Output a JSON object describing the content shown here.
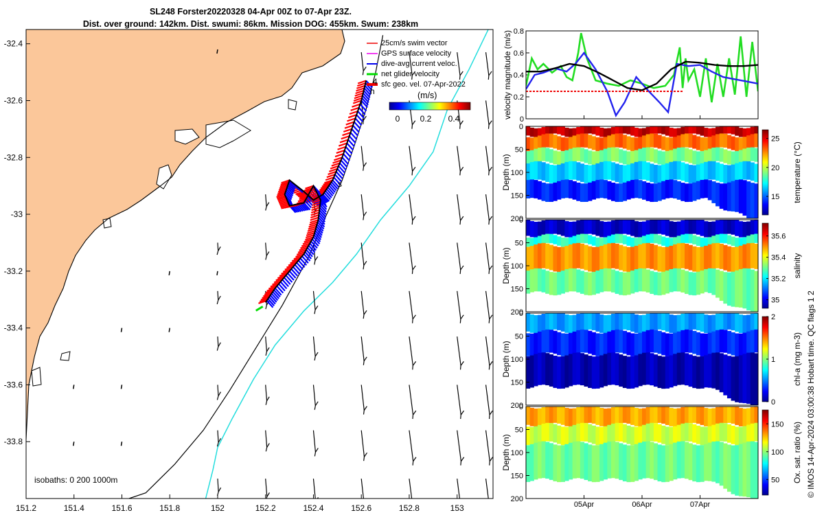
{
  "title_line1": "SL248 Forster20220328 04-Apr 00Z to 07-Apr 23Z.",
  "title_line2": "Dist. over ground: 142km. Dist. swumi: 86km. Mission DOG: 455km. Swum: 238km",
  "side_credit": "© IMOS 14-Apr-2024 03:00:38 Hobart time. QC flags 1  2",
  "colors": {
    "land": "#fbc79a",
    "swim_vector": "#ff0000",
    "gps_velocity": "#ff00ff",
    "dive_current": "#0000ff",
    "net_velocity": "#00dd00",
    "isobath_200": "#000000",
    "isobath_1000": "#22dddd"
  },
  "chart_data": [
    {
      "type": "scatter",
      "name": "map",
      "xlim": [
        151.2,
        153.15
      ],
      "ylim": [
        -34.0,
        -32.35
      ],
      "x_ticks": [
        151.2,
        151.4,
        151.6,
        151.8,
        152,
        152.2,
        152.4,
        152.6,
        152.8,
        153
      ],
      "x_tick_labels": [
        "151.2",
        "151.4",
        "151.6",
        "151.8",
        "152",
        "152.2",
        "152.4",
        "152.6",
        "152.8",
        "153"
      ],
      "y_ticks": [
        -32.4,
        -32.6,
        -32.8,
        -33,
        -33.2,
        -33.4,
        -33.6,
        -33.8
      ],
      "y_tick_labels": [
        "-32.4",
        "-32.6",
        "-32.8",
        "-33",
        "-33.2",
        "-33.4",
        "-33.6",
        "-33.8"
      ],
      "legend": [
        "25cm/s swim vector",
        "GPS surface velocity",
        "dive-avg current veloc.",
        "net glider velocity",
        "sfc geo. vel. 07-Apr-2022"
      ],
      "legend_placement": "top-right",
      "colorbar": {
        "label": "(m/s)",
        "ticks": [
          0,
          0.2,
          0.4
        ],
        "tick_labels": [
          "0",
          "0.2",
          "0.4"
        ]
      },
      "isobaths_label": "isobaths: 0   200  1000m",
      "track_markers": {
        "start": "h",
        "mid": "s",
        "end": "4"
      },
      "glider_track": {
        "lon": [
          152.62,
          152.6,
          152.56,
          152.52,
          152.48,
          152.44,
          152.4,
          152.36,
          152.3,
          152.28,
          152.3,
          152.36,
          152.4,
          152.43,
          152.42,
          152.4,
          152.36,
          152.3,
          152.24,
          152.2
        ],
        "lat": [
          -32.53,
          -32.6,
          -32.7,
          -32.8,
          -32.88,
          -32.93,
          -32.95,
          -32.92,
          -32.88,
          -32.93,
          -32.97,
          -32.96,
          -32.9,
          -32.95,
          -33.02,
          -33.08,
          -33.14,
          -33.2,
          -33.26,
          -33.31
        ]
      },
      "isobath_200": {
        "lon": [
          152.69,
          152.66,
          152.62,
          152.57,
          152.52,
          152.45,
          152.38,
          152.27,
          152.16,
          152.05,
          151.94,
          151.82,
          151.7,
          151.63
        ],
        "lat": [
          -32.37,
          -32.5,
          -32.63,
          -32.76,
          -32.88,
          -33.01,
          -33.15,
          -33.32,
          -33.47,
          -33.62,
          -33.76,
          -33.88,
          -33.98,
          -34.0
        ]
      },
      "isobath_1000": {
        "lon": [
          153.13,
          153.05,
          152.96,
          152.9,
          152.8,
          152.68,
          152.58,
          152.48,
          152.36,
          152.24,
          152.15,
          152.06,
          152.0,
          151.98,
          151.95
        ],
        "lat": [
          -32.35,
          -32.49,
          -32.63,
          -32.78,
          -32.9,
          -33.02,
          -33.14,
          -33.24,
          -33.34,
          -33.46,
          -33.58,
          -33.72,
          -33.82,
          -33.9,
          -34.0
        ]
      }
    },
    {
      "type": "line",
      "name": "velocity",
      "ylabel": "velocity magnitude (m/s)",
      "ylim": [
        0,
        0.8
      ],
      "y_ticks": [
        0,
        0.2,
        0.4,
        0.6,
        0.8
      ],
      "y_tick_labels": [
        "0",
        "0.2",
        "0.4",
        "0.6",
        "0.8"
      ],
      "x_ticks": [
        1.0,
        2.0,
        3.0
      ],
      "x_tick_labels": [
        "05Apr",
        "06Apr",
        "07Apr"
      ],
      "xlim": [
        0,
        4
      ],
      "series": [
        {
          "name": "net glider velocity",
          "color": "#22dd22",
          "x": [
            0,
            0.1,
            0.2,
            0.3,
            0.45,
            0.6,
            0.7,
            0.8,
            0.9,
            0.95,
            1.05,
            1.2,
            1.4,
            1.6,
            1.8,
            2.0,
            2.2,
            2.4,
            2.55,
            2.65,
            2.7,
            2.75,
            2.8,
            2.9,
            3.0,
            3.1,
            3.2,
            3.3,
            3.4,
            3.5,
            3.6,
            3.7,
            3.8,
            3.9,
            4.0
          ],
          "y": [
            0.3,
            0.55,
            0.45,
            0.5,
            0.42,
            0.48,
            0.38,
            0.35,
            0.6,
            0.78,
            0.55,
            0.35,
            0.32,
            0.3,
            0.35,
            0.32,
            0.28,
            0.3,
            0.4,
            0.65,
            0.28,
            0.55,
            0.35,
            0.45,
            0.2,
            0.55,
            0.15,
            0.5,
            0.2,
            0.55,
            0.22,
            0.75,
            0.2,
            0.7,
            0.25
          ]
        },
        {
          "name": "dive-avg current veloc.",
          "color": "#2222ee",
          "x": [
            0,
            0.15,
            0.3,
            0.5,
            0.7,
            0.85,
            1.0,
            1.2,
            1.4,
            1.55,
            1.7,
            1.9,
            2.1,
            2.3,
            2.45,
            2.6,
            2.8,
            3.0,
            3.2,
            3.4,
            3.6,
            3.8,
            4.0
          ],
          "y": [
            0.27,
            0.4,
            0.42,
            0.46,
            0.43,
            0.5,
            0.6,
            0.45,
            0.25,
            0.03,
            0.15,
            0.38,
            0.26,
            0.15,
            0.06,
            0.5,
            0.48,
            0.49,
            0.43,
            0.38,
            0.36,
            0.34,
            0.32
          ]
        },
        {
          "name": "net speed trend",
          "color": "#000000",
          "x": [
            0,
            0.25,
            0.5,
            0.75,
            1.0,
            1.25,
            1.5,
            1.75,
            2.0,
            2.25,
            2.5,
            2.75,
            3.0,
            3.25,
            3.5,
            3.75,
            4.0
          ],
          "y": [
            0.43,
            0.43,
            0.46,
            0.5,
            0.48,
            0.42,
            0.35,
            0.28,
            0.26,
            0.32,
            0.45,
            0.52,
            0.51,
            0.49,
            0.48,
            0.48,
            0.49
          ]
        },
        {
          "name": "25cm/s swim vector",
          "color": "#ee0000",
          "x": [
            0,
            2.7
          ],
          "y": [
            0.25,
            0.25
          ]
        }
      ]
    },
    {
      "type": "heatmap",
      "name": "temperature",
      "ylabel": "Depth (m)",
      "clabel": "temperature (°C)",
      "ylim": [
        200,
        0
      ],
      "y_ticks": [
        0,
        50,
        100,
        150,
        200
      ],
      "clim": [
        11.8,
        26.5
      ],
      "c_ticks": [
        15,
        20,
        25
      ],
      "layers": [
        {
          "depth": [
            0,
            20
          ],
          "value": 25.5
        },
        {
          "depth": [
            20,
            50
          ],
          "value": 23.0
        },
        {
          "depth": [
            50,
            80
          ],
          "value": 19.0
        },
        {
          "depth": [
            80,
            120
          ],
          "value": 16.5
        },
        {
          "depth": [
            120,
            160
          ],
          "value": 14.0
        }
      ]
    },
    {
      "type": "heatmap",
      "name": "salinity",
      "ylabel": "Depth (m)",
      "clabel": "salinity",
      "ylim": [
        200,
        0
      ],
      "y_ticks": [
        0,
        50,
        100,
        150,
        200
      ],
      "clim": [
        34.92,
        35.72
      ],
      "c_ticks": [
        35,
        35.2,
        35.4,
        35.6
      ],
      "layers": [
        {
          "depth": [
            0,
            35
          ],
          "value": 34.97
        },
        {
          "depth": [
            35,
            55
          ],
          "value": 35.25
        },
        {
          "depth": [
            55,
            110
          ],
          "value": 35.5
        },
        {
          "depth": [
            110,
            160
          ],
          "value": 35.3
        }
      ]
    },
    {
      "type": "heatmap",
      "name": "chlorophyll",
      "ylabel": "Depth (m)",
      "clabel": "chl-a (mg m-3)",
      "ylim": [
        200,
        0
      ],
      "y_ticks": [
        0,
        50,
        100,
        150,
        200
      ],
      "clim": [
        0,
        2
      ],
      "c_ticks": [
        0,
        1,
        2
      ],
      "layers": [
        {
          "depth": [
            0,
            40
          ],
          "value": 0.55
        },
        {
          "depth": [
            40,
            90
          ],
          "value": 0.3
        },
        {
          "depth": [
            90,
            160
          ],
          "value": 0.08
        }
      ]
    },
    {
      "type": "heatmap",
      "name": "oxygen",
      "ylabel": "Depth (m)",
      "clabel": "Ox. sat. ratio (%)",
      "ylim": [
        200,
        0
      ],
      "y_ticks": [
        0,
        50,
        100,
        150,
        200
      ],
      "clim": [
        22,
        175
      ],
      "c_ticks": [
        50,
        100,
        150
      ],
      "x_ticks": [
        1.0,
        2.0,
        3.0
      ],
      "x_tick_labels": [
        "05Apr",
        "06Apr",
        "07Apr"
      ],
      "layers": [
        {
          "depth": [
            0,
            40
          ],
          "value": 130
        },
        {
          "depth": [
            40,
            80
          ],
          "value": 110
        },
        {
          "depth": [
            80,
            160
          ],
          "value": 95
        }
      ]
    }
  ]
}
